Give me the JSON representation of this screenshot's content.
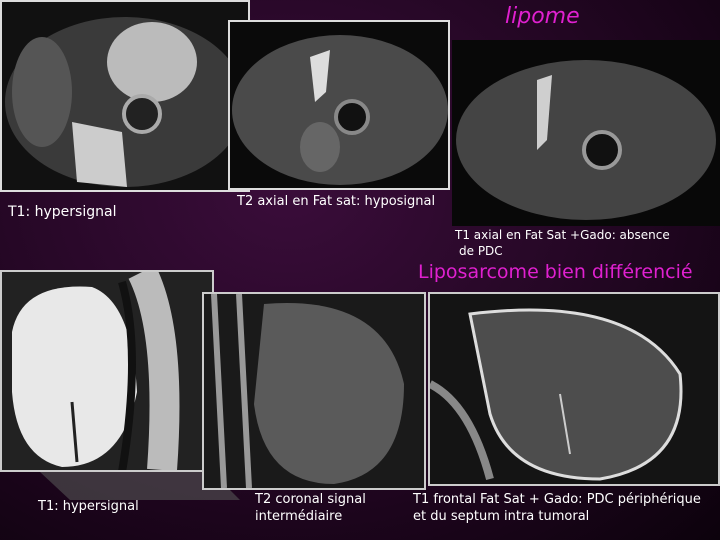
{
  "lipoma": {
    "title": "lipome",
    "captions": {
      "t1": "T1: hypersignal",
      "t2": "T2 axial en Fat sat: hyposignal",
      "t1_gado": [
        "T1 axial en Fat Sat +Gado: absence",
        "de PDC"
      ]
    }
  },
  "liposarcoma": {
    "title": "Liposarcome bien différencié",
    "captions": {
      "t1": "T1: hypersignal",
      "t2": [
        "T2 coronal signal",
        "intermédiaire"
      ],
      "t1_gado": [
        "T1 frontal Fat Sat + Gado: PDC périphérique",
        "et du septum intra tumoral"
      ]
    }
  }
}
